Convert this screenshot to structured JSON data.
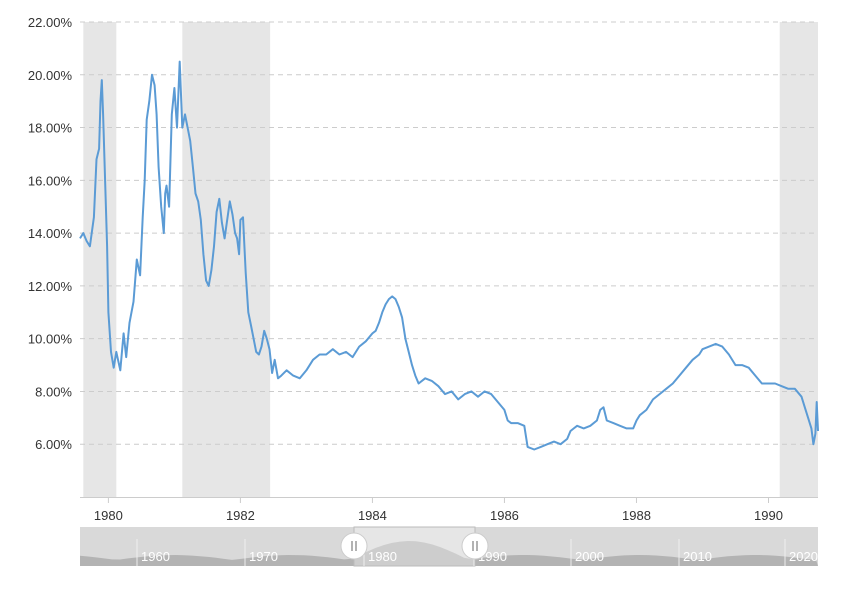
{
  "colors": {
    "line": "#5b9bd5",
    "recession": "#e6e6e6",
    "grid": "#cccccc",
    "axis_text": "#333333",
    "navigator_bg": "#d9d9d9",
    "navigator_fill": "#b3b3b3",
    "navigator_selected_fill": "#888888",
    "navigator_text": "#ffffff"
  },
  "chart_data": {
    "type": "line",
    "x_unit": "year",
    "xlim": [
      1979.57,
      1990.75
    ],
    "ylim": [
      4.0,
      22.0
    ],
    "grid": true,
    "yticks": [
      {
        "value": 6,
        "label": "6.00%"
      },
      {
        "value": 8,
        "label": "8.00%"
      },
      {
        "value": 10,
        "label": "10.00%"
      },
      {
        "value": 12,
        "label": "12.00%"
      },
      {
        "value": 14,
        "label": "14.00%"
      },
      {
        "value": 16,
        "label": "16.00%"
      },
      {
        "value": 18,
        "label": "18.00%"
      },
      {
        "value": 20,
        "label": "20.00%"
      },
      {
        "value": 22,
        "label": "22.00%"
      }
    ],
    "xticks": [
      {
        "value": 1980,
        "label": "1980"
      },
      {
        "value": 1982,
        "label": "1982"
      },
      {
        "value": 1984,
        "label": "1984"
      },
      {
        "value": 1986,
        "label": "1986"
      },
      {
        "value": 1988,
        "label": "1988"
      },
      {
        "value": 1990,
        "label": "1990"
      }
    ],
    "recession_bands": [
      {
        "start": 1979.62,
        "end": 1980.12
      },
      {
        "start": 1981.12,
        "end": 1982.45
      },
      {
        "start": 1990.17,
        "end": 1990.75
      }
    ],
    "series": [
      {
        "values": [
          [
            1979.57,
            13.8
          ],
          [
            1979.62,
            14.0
          ],
          [
            1979.67,
            13.7
          ],
          [
            1979.72,
            13.5
          ],
          [
            1979.78,
            14.6
          ],
          [
            1979.82,
            16.8
          ],
          [
            1979.86,
            17.2
          ],
          [
            1979.88,
            19.0
          ],
          [
            1979.9,
            19.8
          ],
          [
            1979.92,
            18.5
          ],
          [
            1979.95,
            16.0
          ],
          [
            1979.98,
            13.5
          ],
          [
            1980.0,
            11.0
          ],
          [
            1980.04,
            9.5
          ],
          [
            1980.08,
            8.9
          ],
          [
            1980.12,
            9.5
          ],
          [
            1980.18,
            8.8
          ],
          [
            1980.23,
            10.2
          ],
          [
            1980.27,
            9.3
          ],
          [
            1980.32,
            10.6
          ],
          [
            1980.38,
            11.4
          ],
          [
            1980.43,
            13.0
          ],
          [
            1980.48,
            12.4
          ],
          [
            1980.52,
            14.6
          ],
          [
            1980.55,
            16.0
          ],
          [
            1980.58,
            18.3
          ],
          [
            1980.62,
            19.0
          ],
          [
            1980.66,
            20.0
          ],
          [
            1980.7,
            19.6
          ],
          [
            1980.73,
            18.5
          ],
          [
            1980.76,
            16.5
          ],
          [
            1980.8,
            15.0
          ],
          [
            1980.84,
            14.0
          ],
          [
            1980.86,
            15.5
          ],
          [
            1980.88,
            15.8
          ],
          [
            1980.92,
            15.0
          ],
          [
            1980.96,
            18.5
          ],
          [
            1981.0,
            19.5
          ],
          [
            1981.04,
            18.0
          ],
          [
            1981.08,
            20.5
          ],
          [
            1981.12,
            18.0
          ],
          [
            1981.16,
            18.5
          ],
          [
            1981.2,
            18.0
          ],
          [
            1981.24,
            17.5
          ],
          [
            1981.28,
            16.5
          ],
          [
            1981.32,
            15.5
          ],
          [
            1981.36,
            15.2
          ],
          [
            1981.4,
            14.5
          ],
          [
            1981.44,
            13.2
          ],
          [
            1981.48,
            12.2
          ],
          [
            1981.52,
            12.0
          ],
          [
            1981.56,
            12.6
          ],
          [
            1981.6,
            13.5
          ],
          [
            1981.64,
            14.8
          ],
          [
            1981.68,
            15.3
          ],
          [
            1981.72,
            14.4
          ],
          [
            1981.76,
            13.8
          ],
          [
            1981.8,
            14.5
          ],
          [
            1981.84,
            15.2
          ],
          [
            1981.88,
            14.7
          ],
          [
            1981.92,
            14.0
          ],
          [
            1981.95,
            13.8
          ],
          [
            1981.98,
            13.2
          ],
          [
            1982.0,
            14.5
          ],
          [
            1982.04,
            14.6
          ],
          [
            1982.08,
            12.5
          ],
          [
            1982.12,
            11.0
          ],
          [
            1982.16,
            10.5
          ],
          [
            1982.2,
            10.0
          ],
          [
            1982.24,
            9.5
          ],
          [
            1982.28,
            9.4
          ],
          [
            1982.32,
            9.7
          ],
          [
            1982.36,
            10.3
          ],
          [
            1982.4,
            10.0
          ],
          [
            1982.44,
            9.6
          ],
          [
            1982.48,
            8.7
          ],
          [
            1982.52,
            9.2
          ],
          [
            1982.57,
            8.5
          ],
          [
            1982.62,
            8.6
          ],
          [
            1982.7,
            8.8
          ],
          [
            1982.8,
            8.6
          ],
          [
            1982.9,
            8.5
          ],
          [
            1983.0,
            8.8
          ],
          [
            1983.1,
            9.2
          ],
          [
            1983.2,
            9.4
          ],
          [
            1983.3,
            9.4
          ],
          [
            1983.4,
            9.6
          ],
          [
            1983.5,
            9.4
          ],
          [
            1983.6,
            9.5
          ],
          [
            1983.7,
            9.3
          ],
          [
            1983.8,
            9.7
          ],
          [
            1983.9,
            9.9
          ],
          [
            1984.0,
            10.2
          ],
          [
            1984.05,
            10.3
          ],
          [
            1984.1,
            10.6
          ],
          [
            1984.15,
            11.0
          ],
          [
            1984.2,
            11.3
          ],
          [
            1984.25,
            11.5
          ],
          [
            1984.3,
            11.6
          ],
          [
            1984.35,
            11.5
          ],
          [
            1984.4,
            11.2
          ],
          [
            1984.45,
            10.8
          ],
          [
            1984.5,
            10.0
          ],
          [
            1984.55,
            9.5
          ],
          [
            1984.6,
            9.0
          ],
          [
            1984.65,
            8.6
          ],
          [
            1984.7,
            8.3
          ],
          [
            1984.8,
            8.5
          ],
          [
            1984.9,
            8.4
          ],
          [
            1985.0,
            8.2
          ],
          [
            1985.1,
            7.9
          ],
          [
            1985.2,
            8.0
          ],
          [
            1985.3,
            7.7
          ],
          [
            1985.4,
            7.9
          ],
          [
            1985.5,
            8.0
          ],
          [
            1985.6,
            7.8
          ],
          [
            1985.7,
            8.0
          ],
          [
            1985.8,
            7.9
          ],
          [
            1985.9,
            7.6
          ],
          [
            1986.0,
            7.3
          ],
          [
            1986.05,
            6.9
          ],
          [
            1986.1,
            6.8
          ],
          [
            1986.2,
            6.8
          ],
          [
            1986.3,
            6.7
          ],
          [
            1986.35,
            5.9
          ],
          [
            1986.45,
            5.8
          ],
          [
            1986.55,
            5.9
          ],
          [
            1986.65,
            6.0
          ],
          [
            1986.75,
            6.1
          ],
          [
            1986.85,
            6.0
          ],
          [
            1986.95,
            6.2
          ],
          [
            1987.0,
            6.5
          ],
          [
            1987.05,
            6.6
          ],
          [
            1987.1,
            6.7
          ],
          [
            1987.2,
            6.6
          ],
          [
            1987.3,
            6.7
          ],
          [
            1987.4,
            6.9
          ],
          [
            1987.45,
            7.3
          ],
          [
            1987.5,
            7.4
          ],
          [
            1987.55,
            6.9
          ],
          [
            1987.65,
            6.8
          ],
          [
            1987.75,
            6.7
          ],
          [
            1987.85,
            6.6
          ],
          [
            1987.95,
            6.6
          ],
          [
            1988.0,
            6.9
          ],
          [
            1988.05,
            7.1
          ],
          [
            1988.15,
            7.3
          ],
          [
            1988.25,
            7.7
          ],
          [
            1988.35,
            7.9
          ],
          [
            1988.45,
            8.1
          ],
          [
            1988.55,
            8.3
          ],
          [
            1988.65,
            8.6
          ],
          [
            1988.75,
            8.9
          ],
          [
            1988.85,
            9.2
          ],
          [
            1988.95,
            9.4
          ],
          [
            1989.0,
            9.6
          ],
          [
            1989.1,
            9.7
          ],
          [
            1989.2,
            9.8
          ],
          [
            1989.3,
            9.7
          ],
          [
            1989.4,
            9.4
          ],
          [
            1989.5,
            9.0
          ],
          [
            1989.6,
            9.0
          ],
          [
            1989.7,
            8.9
          ],
          [
            1989.8,
            8.6
          ],
          [
            1989.9,
            8.3
          ],
          [
            1990.0,
            8.3
          ],
          [
            1990.1,
            8.3
          ],
          [
            1990.2,
            8.2
          ],
          [
            1990.3,
            8.1
          ],
          [
            1990.4,
            8.1
          ],
          [
            1990.5,
            7.8
          ],
          [
            1990.55,
            7.4
          ],
          [
            1990.6,
            7.0
          ],
          [
            1990.65,
            6.6
          ],
          [
            1990.68,
            6.0
          ],
          [
            1990.71,
            6.4
          ],
          [
            1990.73,
            7.6
          ],
          [
            1990.75,
            6.5
          ]
        ]
      }
    ]
  },
  "navigator": {
    "labels": [
      "1960",
      "1970",
      "1980",
      "1990",
      "2000",
      "2010",
      "2020"
    ],
    "handle_left_icon": "grip-icon",
    "handle_right_icon": "grip-icon"
  }
}
